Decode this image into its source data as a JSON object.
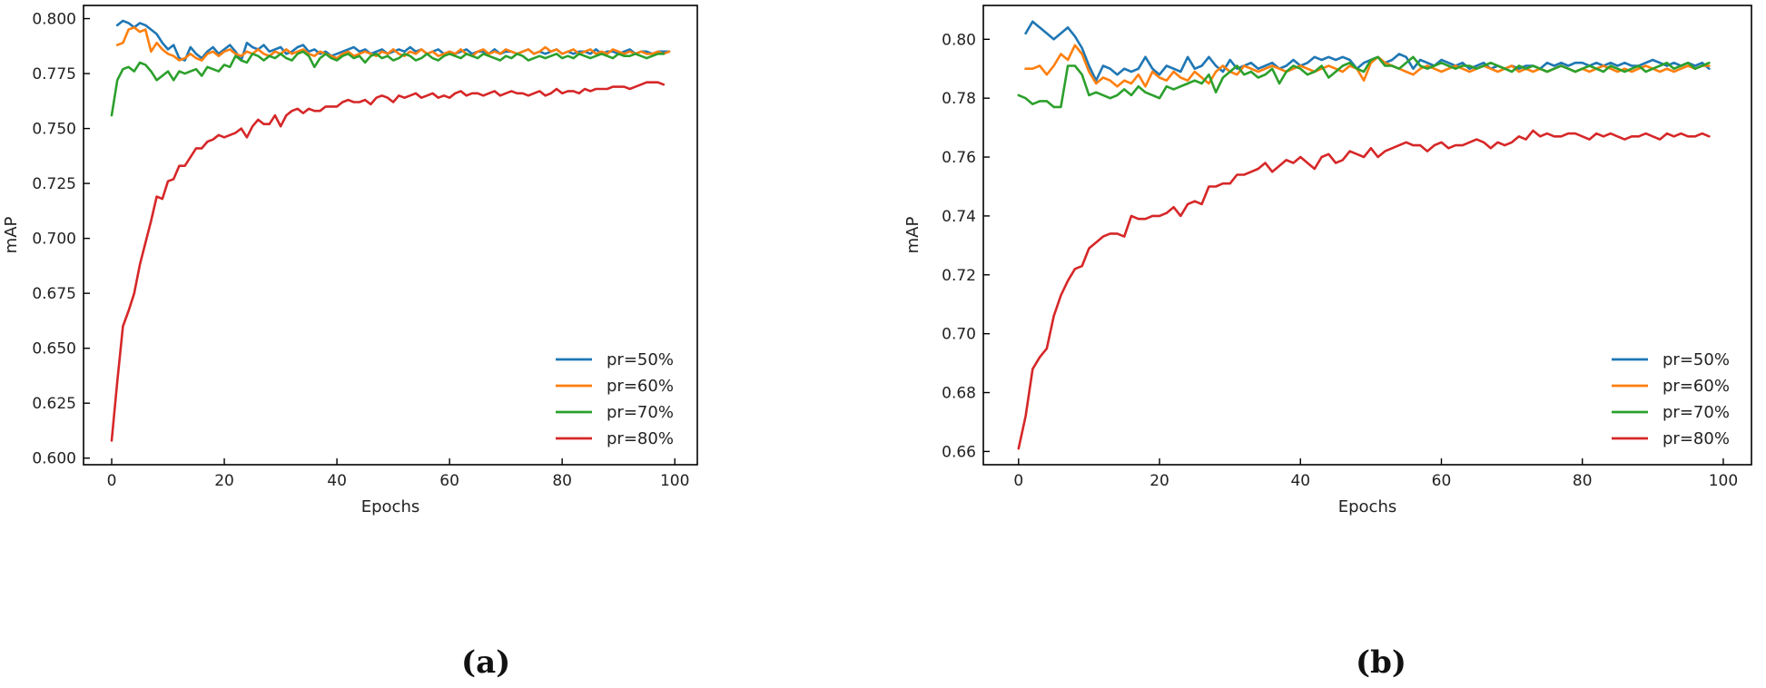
{
  "panels": {
    "a_label": "(a)",
    "b_label": "(b)"
  },
  "chart_data": [
    {
      "type": "line",
      "panel": "(a)",
      "title": "",
      "xlabel": "Epochs",
      "ylabel": "mAP",
      "xlim": [
        -5,
        104
      ],
      "ylim": [
        0.597,
        0.806
      ],
      "xticks": [
        0,
        20,
        40,
        60,
        80,
        100
      ],
      "yticks": [
        0.6,
        0.625,
        0.65,
        0.675,
        0.7,
        0.725,
        0.75,
        0.775,
        0.8
      ],
      "ytick_labels": [
        "0.600",
        "0.625",
        "0.650",
        "0.675",
        "0.700",
        "0.725",
        "0.750",
        "0.775",
        "0.800"
      ],
      "legend_position": "lower-right",
      "series": [
        {
          "name": "pr=50%",
          "color": "#1f77b4",
          "x_start": 1,
          "values": [
            0.797,
            0.799,
            0.798,
            0.796,
            0.798,
            0.797,
            0.795,
            0.793,
            0.789,
            0.786,
            0.788,
            0.782,
            0.781,
            0.787,
            0.784,
            0.782,
            0.785,
            0.787,
            0.784,
            0.786,
            0.788,
            0.785,
            0.781,
            0.789,
            0.787,
            0.786,
            0.788,
            0.785,
            0.786,
            0.787,
            0.784,
            0.785,
            0.787,
            0.788,
            0.785,
            0.786,
            0.784,
            0.785,
            0.783,
            0.784,
            0.785,
            0.786,
            0.787,
            0.785,
            0.786,
            0.784,
            0.785,
            0.786,
            0.784,
            0.785,
            0.786,
            0.785,
            0.787,
            0.785,
            0.786,
            0.784,
            0.785,
            0.786,
            0.784,
            0.785,
            0.784,
            0.785,
            0.786,
            0.784,
            0.785,
            0.785,
            0.784,
            0.786,
            0.784,
            0.785,
            0.785,
            0.784,
            0.785,
            0.786,
            0.784,
            0.785,
            0.784,
            0.785,
            0.786,
            0.784,
            0.785,
            0.784,
            0.785,
            0.785,
            0.784,
            0.786,
            0.784,
            0.785,
            0.785,
            0.784,
            0.785,
            0.786,
            0.784,
            0.785,
            0.785,
            0.784,
            0.785,
            0.785,
            0.785
          ]
        },
        {
          "name": "pr=60%",
          "color": "#ff7f0e",
          "x_start": 1,
          "values": [
            0.788,
            0.789,
            0.795,
            0.796,
            0.794,
            0.795,
            0.785,
            0.789,
            0.786,
            0.784,
            0.783,
            0.781,
            0.782,
            0.784,
            0.782,
            0.781,
            0.784,
            0.785,
            0.783,
            0.785,
            0.786,
            0.784,
            0.783,
            0.785,
            0.784,
            0.786,
            0.784,
            0.783,
            0.785,
            0.784,
            0.786,
            0.784,
            0.785,
            0.786,
            0.784,
            0.783,
            0.785,
            0.784,
            0.783,
            0.782,
            0.784,
            0.785,
            0.783,
            0.784,
            0.785,
            0.784,
            0.783,
            0.785,
            0.784,
            0.786,
            0.784,
            0.783,
            0.785,
            0.784,
            0.786,
            0.784,
            0.785,
            0.783,
            0.784,
            0.785,
            0.784,
            0.786,
            0.784,
            0.783,
            0.785,
            0.786,
            0.784,
            0.785,
            0.784,
            0.786,
            0.785,
            0.784,
            0.785,
            0.786,
            0.784,
            0.785,
            0.787,
            0.785,
            0.786,
            0.784,
            0.785,
            0.786,
            0.784,
            0.785,
            0.786,
            0.784,
            0.785,
            0.784,
            0.786,
            0.785,
            0.784,
            0.785,
            0.784,
            0.785,
            0.784,
            0.784,
            0.785,
            0.784,
            0.785
          ]
        },
        {
          "name": "pr=70%",
          "color": "#2ca02c",
          "x_start": 0,
          "values": [
            0.756,
            0.772,
            0.777,
            0.778,
            0.776,
            0.78,
            0.779,
            0.776,
            0.772,
            0.774,
            0.776,
            0.772,
            0.776,
            0.775,
            0.776,
            0.777,
            0.774,
            0.778,
            0.777,
            0.776,
            0.779,
            0.778,
            0.783,
            0.781,
            0.78,
            0.784,
            0.783,
            0.781,
            0.783,
            0.782,
            0.784,
            0.782,
            0.781,
            0.784,
            0.785,
            0.783,
            0.778,
            0.782,
            0.784,
            0.782,
            0.781,
            0.783,
            0.784,
            0.782,
            0.783,
            0.78,
            0.783,
            0.784,
            0.782,
            0.783,
            0.781,
            0.782,
            0.784,
            0.783,
            0.781,
            0.782,
            0.784,
            0.782,
            0.781,
            0.783,
            0.784,
            0.783,
            0.782,
            0.784,
            0.783,
            0.782,
            0.784,
            0.783,
            0.782,
            0.781,
            0.783,
            0.782,
            0.784,
            0.783,
            0.781,
            0.782,
            0.783,
            0.782,
            0.783,
            0.784,
            0.782,
            0.783,
            0.782,
            0.784,
            0.783,
            0.782,
            0.783,
            0.784,
            0.783,
            0.782,
            0.784,
            0.783,
            0.783,
            0.784,
            0.783,
            0.782,
            0.783,
            0.784,
            0.784
          ]
        },
        {
          "name": "pr=80%",
          "color": "#d62728",
          "x_start": 0,
          "values": [
            0.608,
            0.635,
            0.66,
            0.667,
            0.675,
            0.688,
            0.698,
            0.708,
            0.719,
            0.718,
            0.726,
            0.727,
            0.733,
            0.733,
            0.737,
            0.741,
            0.741,
            0.744,
            0.745,
            0.747,
            0.746,
            0.747,
            0.748,
            0.75,
            0.746,
            0.751,
            0.754,
            0.752,
            0.752,
            0.756,
            0.751,
            0.756,
            0.758,
            0.759,
            0.757,
            0.759,
            0.758,
            0.758,
            0.76,
            0.76,
            0.76,
            0.762,
            0.763,
            0.762,
            0.762,
            0.763,
            0.761,
            0.764,
            0.765,
            0.764,
            0.762,
            0.765,
            0.764,
            0.765,
            0.766,
            0.764,
            0.765,
            0.766,
            0.764,
            0.765,
            0.764,
            0.766,
            0.767,
            0.765,
            0.766,
            0.766,
            0.765,
            0.766,
            0.767,
            0.765,
            0.766,
            0.767,
            0.766,
            0.766,
            0.765,
            0.766,
            0.767,
            0.765,
            0.766,
            0.768,
            0.766,
            0.767,
            0.767,
            0.766,
            0.768,
            0.767,
            0.768,
            0.768,
            0.768,
            0.769,
            0.769,
            0.769,
            0.768,
            0.769,
            0.77,
            0.771,
            0.771,
            0.771,
            0.77
          ]
        }
      ]
    },
    {
      "type": "line",
      "panel": "(b)",
      "title": "",
      "xlabel": "Epochs",
      "ylabel": "mAP",
      "xlim": [
        -5,
        104
      ],
      "ylim": [
        0.6555,
        0.8115
      ],
      "xticks": [
        0,
        20,
        40,
        60,
        80,
        100
      ],
      "yticks": [
        0.66,
        0.68,
        0.7,
        0.72,
        0.74,
        0.76,
        0.78,
        0.8
      ],
      "ytick_labels": [
        "0.66",
        "0.68",
        "0.70",
        "0.72",
        "0.74",
        "0.76",
        "0.78",
        "0.80"
      ],
      "legend_position": "lower-right",
      "series": [
        {
          "name": "pr=50%",
          "color": "#1f77b4",
          "x_start": 1,
          "values": [
            0.802,
            0.806,
            0.804,
            0.802,
            0.8,
            0.802,
            0.804,
            0.801,
            0.797,
            0.791,
            0.786,
            0.791,
            0.79,
            0.788,
            0.79,
            0.789,
            0.79,
            0.794,
            0.79,
            0.788,
            0.791,
            0.79,
            0.789,
            0.794,
            0.79,
            0.791,
            0.794,
            0.791,
            0.789,
            0.793,
            0.79,
            0.791,
            0.792,
            0.79,
            0.791,
            0.792,
            0.79,
            0.791,
            0.793,
            0.791,
            0.792,
            0.794,
            0.793,
            0.794,
            0.793,
            0.794,
            0.793,
            0.79,
            0.792,
            0.793,
            0.794,
            0.792,
            0.793,
            0.795,
            0.794,
            0.79,
            0.793,
            0.792,
            0.791,
            0.793,
            0.792,
            0.791,
            0.792,
            0.79,
            0.791,
            0.792,
            0.79,
            0.791,
            0.79,
            0.791,
            0.79,
            0.791,
            0.791,
            0.79,
            0.792,
            0.791,
            0.792,
            0.791,
            0.792,
            0.792,
            0.791,
            0.792,
            0.791,
            0.792,
            0.791,
            0.792,
            0.791,
            0.791,
            0.792,
            0.793,
            0.792,
            0.791,
            0.792,
            0.791,
            0.792,
            0.791,
            0.792,
            0.79
          ]
        },
        {
          "name": "pr=60%",
          "color": "#ff7f0e",
          "x_start": 1,
          "values": [
            0.79,
            0.79,
            0.791,
            0.788,
            0.791,
            0.795,
            0.793,
            0.798,
            0.795,
            0.789,
            0.785,
            0.787,
            0.786,
            0.784,
            0.786,
            0.785,
            0.788,
            0.784,
            0.789,
            0.787,
            0.786,
            0.789,
            0.787,
            0.786,
            0.789,
            0.787,
            0.785,
            0.789,
            0.791,
            0.789,
            0.788,
            0.791,
            0.79,
            0.789,
            0.79,
            0.791,
            0.79,
            0.789,
            0.79,
            0.791,
            0.79,
            0.789,
            0.79,
            0.791,
            0.79,
            0.789,
            0.791,
            0.79,
            0.786,
            0.792,
            0.794,
            0.792,
            0.791,
            0.79,
            0.789,
            0.788,
            0.79,
            0.791,
            0.79,
            0.789,
            0.79,
            0.791,
            0.79,
            0.789,
            0.79,
            0.791,
            0.79,
            0.789,
            0.79,
            0.791,
            0.789,
            0.79,
            0.789,
            0.79,
            0.789,
            0.79,
            0.791,
            0.79,
            0.789,
            0.79,
            0.789,
            0.79,
            0.791,
            0.79,
            0.789,
            0.79,
            0.789,
            0.79,
            0.791,
            0.79,
            0.789,
            0.79,
            0.789,
            0.79,
            0.791,
            0.79,
            0.791,
            0.791
          ]
        },
        {
          "name": "pr=70%",
          "color": "#2ca02c",
          "x_start": 0,
          "values": [
            0.781,
            0.78,
            0.778,
            0.779,
            0.779,
            0.777,
            0.777,
            0.791,
            0.791,
            0.788,
            0.781,
            0.782,
            0.781,
            0.78,
            0.781,
            0.783,
            0.781,
            0.784,
            0.782,
            0.781,
            0.78,
            0.784,
            0.783,
            0.784,
            0.785,
            0.786,
            0.785,
            0.788,
            0.782,
            0.787,
            0.789,
            0.791,
            0.788,
            0.789,
            0.787,
            0.788,
            0.79,
            0.785,
            0.789,
            0.791,
            0.79,
            0.788,
            0.789,
            0.791,
            0.787,
            0.789,
            0.791,
            0.792,
            0.79,
            0.789,
            0.793,
            0.794,
            0.791,
            0.791,
            0.79,
            0.792,
            0.794,
            0.791,
            0.79,
            0.791,
            0.792,
            0.791,
            0.79,
            0.791,
            0.791,
            0.79,
            0.791,
            0.792,
            0.791,
            0.79,
            0.789,
            0.791,
            0.79,
            0.791,
            0.79,
            0.789,
            0.79,
            0.791,
            0.79,
            0.789,
            0.79,
            0.791,
            0.79,
            0.789,
            0.791,
            0.79,
            0.789,
            0.79,
            0.791,
            0.789,
            0.79,
            0.791,
            0.792,
            0.79,
            0.791,
            0.792,
            0.79,
            0.791,
            0.792
          ]
        },
        {
          "name": "pr=80%",
          "color": "#d62728",
          "x_start": 0,
          "values": [
            0.661,
            0.672,
            0.688,
            0.692,
            0.695,
            0.706,
            0.713,
            0.718,
            0.722,
            0.723,
            0.729,
            0.731,
            0.733,
            0.734,
            0.734,
            0.733,
            0.74,
            0.739,
            0.739,
            0.74,
            0.74,
            0.741,
            0.743,
            0.74,
            0.744,
            0.745,
            0.744,
            0.75,
            0.75,
            0.751,
            0.751,
            0.754,
            0.754,
            0.755,
            0.756,
            0.758,
            0.755,
            0.757,
            0.759,
            0.758,
            0.76,
            0.758,
            0.756,
            0.76,
            0.761,
            0.758,
            0.759,
            0.762,
            0.761,
            0.76,
            0.763,
            0.76,
            0.762,
            0.763,
            0.764,
            0.765,
            0.764,
            0.764,
            0.762,
            0.764,
            0.765,
            0.763,
            0.764,
            0.764,
            0.765,
            0.766,
            0.765,
            0.763,
            0.765,
            0.764,
            0.765,
            0.767,
            0.766,
            0.769,
            0.767,
            0.768,
            0.767,
            0.767,
            0.768,
            0.768,
            0.767,
            0.766,
            0.768,
            0.767,
            0.768,
            0.767,
            0.766,
            0.767,
            0.767,
            0.768,
            0.767,
            0.766,
            0.768,
            0.767,
            0.768,
            0.767,
            0.767,
            0.768,
            0.767
          ]
        }
      ]
    }
  ]
}
